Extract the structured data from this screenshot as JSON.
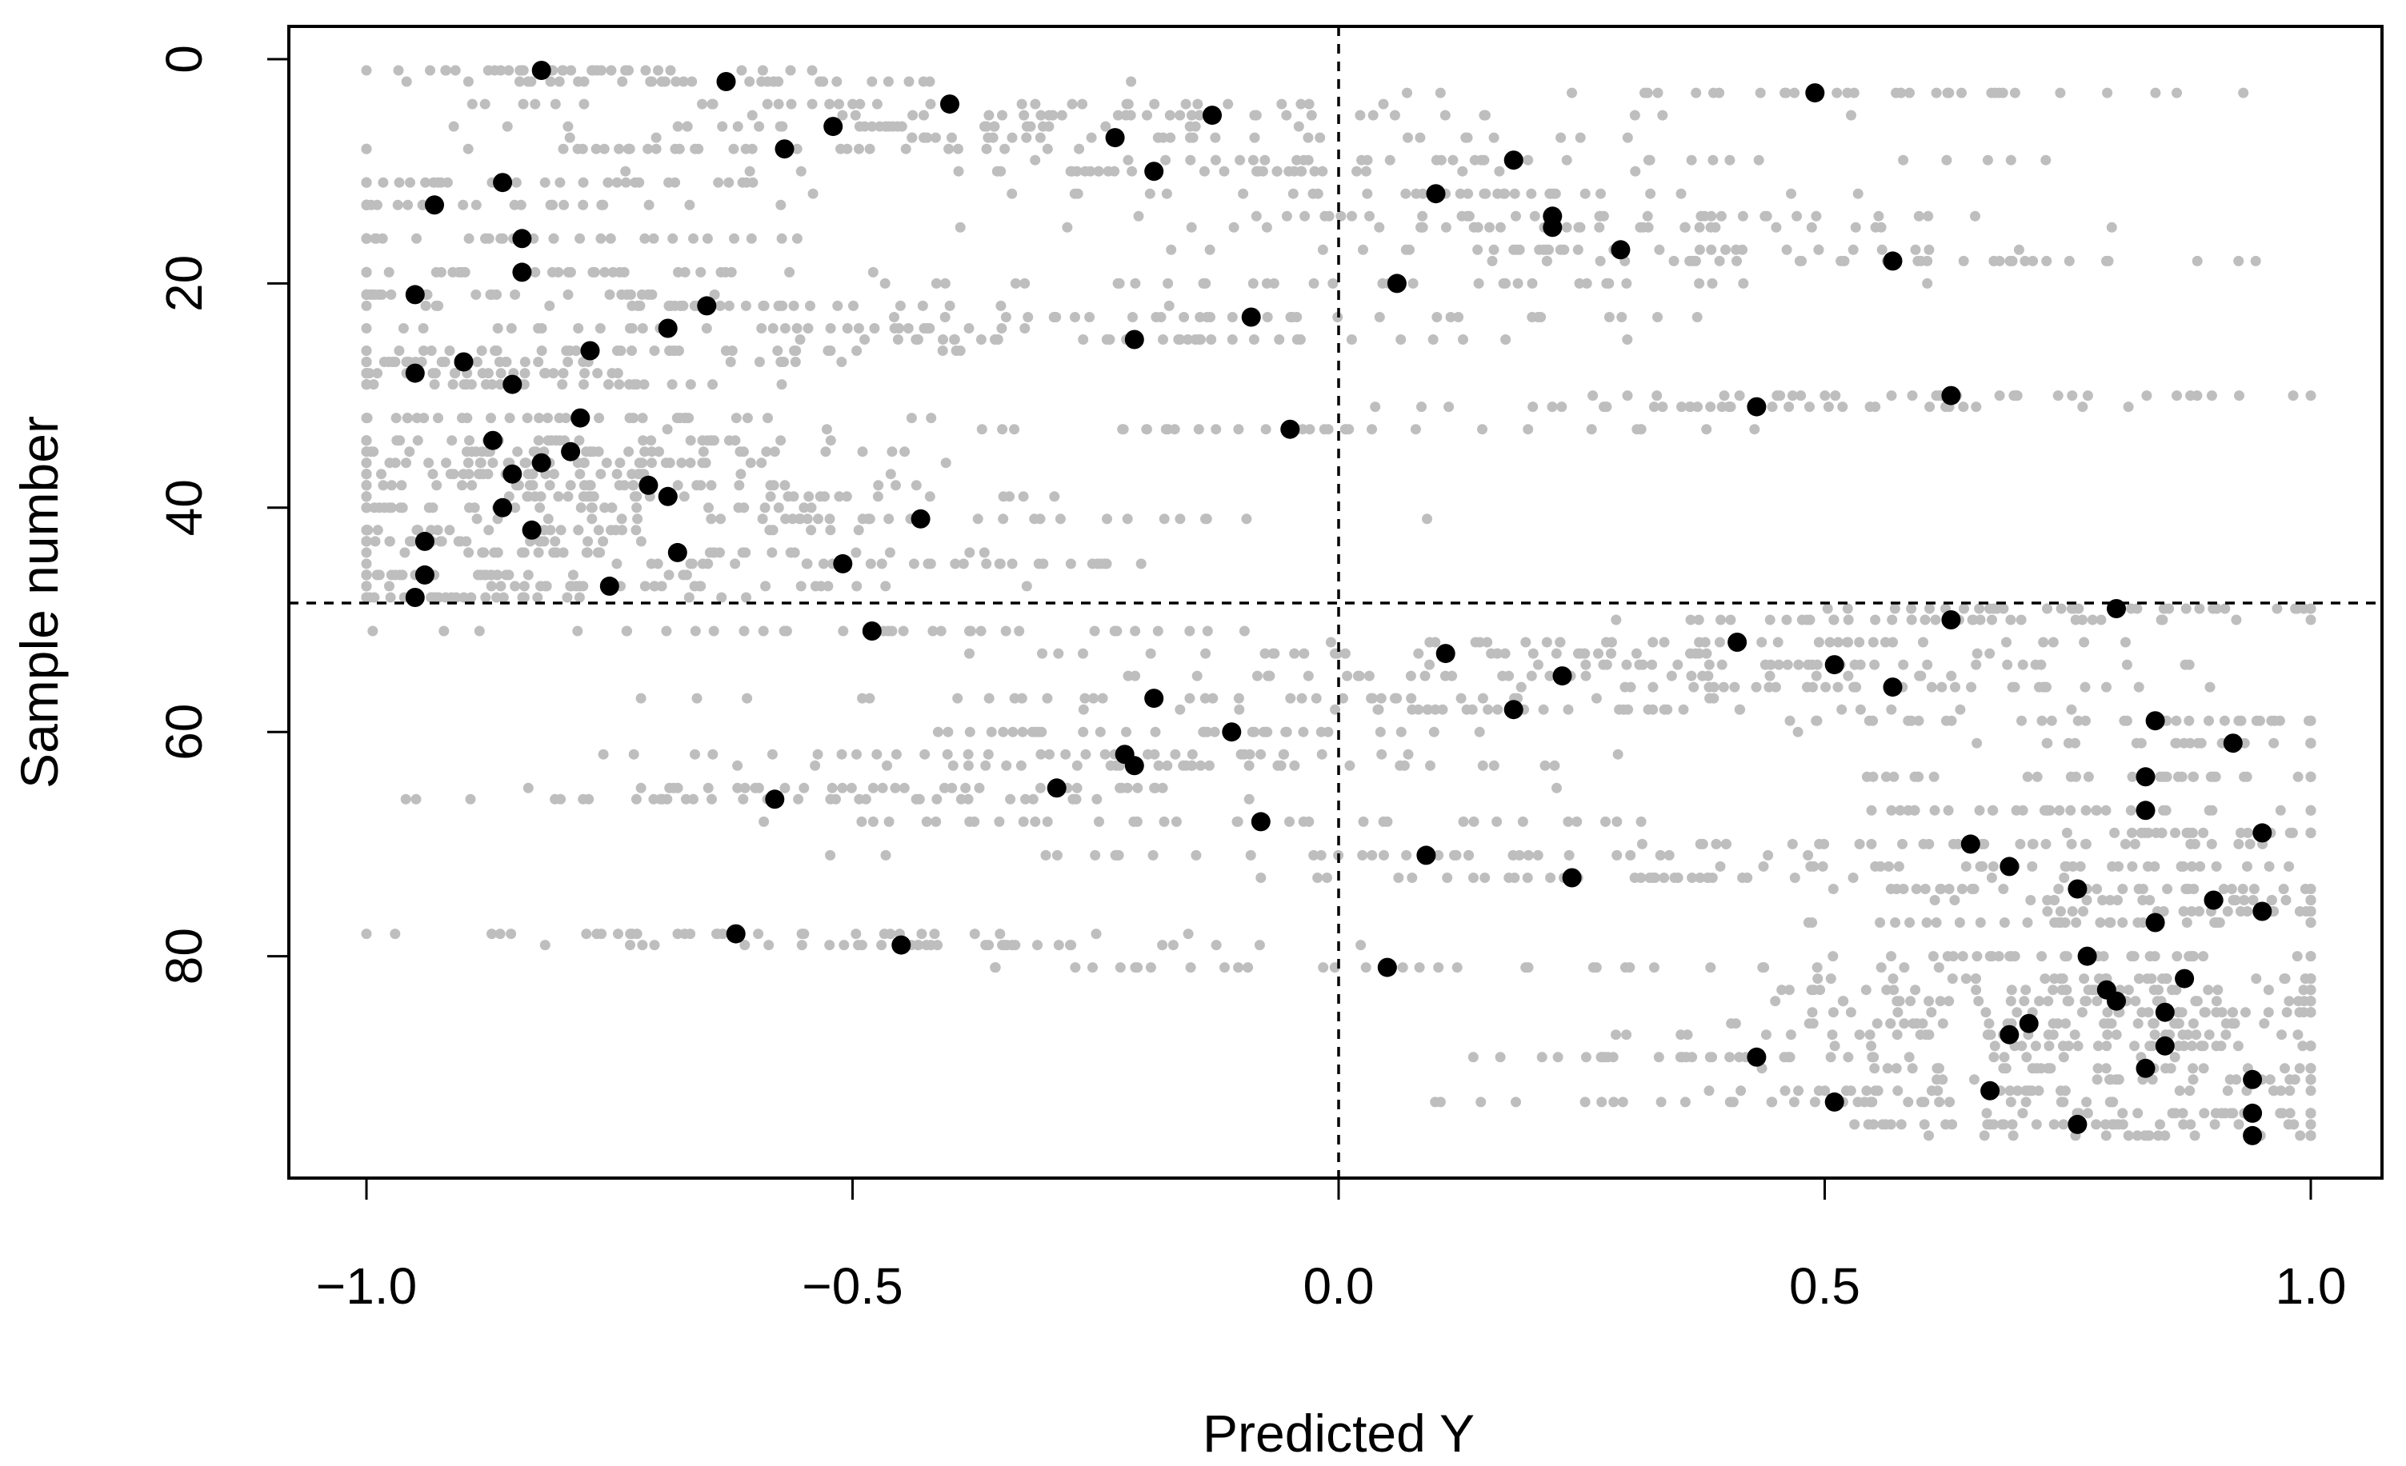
{
  "chart_data": {
    "type": "scatter",
    "xlabel": "Predicted Y",
    "ylabel": "Sample number",
    "xlim": [
      -1.08,
      1.08
    ],
    "ylim": [
      -3,
      100
    ],
    "y_reversed": true,
    "x_ticks": [
      -1.0,
      -0.5,
      0.0,
      0.5,
      1.0
    ],
    "x_tick_labels": [
      "−1.0",
      "−0.5",
      "0.0",
      "0.5",
      "1.0"
    ],
    "y_ticks": [
      0,
      20,
      40,
      60,
      80
    ],
    "y_tick_labels": [
      "0",
      "20",
      "40",
      "60",
      "80"
    ],
    "reference_lines": {
      "vertical_x": 0.0,
      "horizontal_y": 48.5
    },
    "colors": {
      "background_samples": "#bebebe",
      "mean_points": "#000000"
    },
    "series": [
      {
        "name": "",
        "role": "mean predictions",
        "color": "#000000",
        "points": [
          [
            -0.82,
            1
          ],
          [
            -0.63,
            2
          ],
          [
            0.49,
            3
          ],
          [
            -0.4,
            4
          ],
          [
            -0.13,
            5
          ],
          [
            -0.52,
            6
          ],
          [
            -0.23,
            7
          ],
          [
            -0.57,
            8
          ],
          [
            0.18,
            9
          ],
          [
            -0.19,
            10
          ],
          [
            -0.86,
            11
          ],
          [
            0.1,
            12
          ],
          [
            -0.93,
            13
          ],
          [
            0.22,
            14
          ],
          [
            0.22,
            15
          ],
          [
            -0.84,
            16
          ],
          [
            0.29,
            17
          ],
          [
            0.57,
            18
          ],
          [
            -0.84,
            19
          ],
          [
            0.06,
            20
          ],
          [
            -0.95,
            21
          ],
          [
            -0.65,
            22
          ],
          [
            -0.09,
            23
          ],
          [
            -0.69,
            24
          ],
          [
            -0.21,
            25
          ],
          [
            -0.77,
            26
          ],
          [
            -0.9,
            27
          ],
          [
            -0.95,
            28
          ],
          [
            -0.85,
            29
          ],
          [
            0.63,
            30
          ],
          [
            0.43,
            31
          ],
          [
            -0.78,
            32
          ],
          [
            -0.05,
            33
          ],
          [
            -0.87,
            34
          ],
          [
            -0.79,
            35
          ],
          [
            -0.82,
            36
          ],
          [
            -0.85,
            37
          ],
          [
            -0.71,
            38
          ],
          [
            -0.69,
            39
          ],
          [
            -0.86,
            40
          ],
          [
            -0.43,
            41
          ],
          [
            -0.83,
            42
          ],
          [
            -0.94,
            43
          ],
          [
            -0.68,
            44
          ],
          [
            -0.51,
            45
          ],
          [
            -0.94,
            46
          ],
          [
            -0.75,
            47
          ],
          [
            -0.95,
            48
          ],
          [
            0.8,
            49
          ],
          [
            0.63,
            50
          ],
          [
            -0.48,
            51
          ],
          [
            0.41,
            52
          ],
          [
            0.11,
            53
          ],
          [
            0.51,
            54
          ],
          [
            0.23,
            55
          ],
          [
            0.57,
            56
          ],
          [
            -0.19,
            57
          ],
          [
            0.18,
            58
          ],
          [
            0.84,
            59
          ],
          [
            -0.11,
            60
          ],
          [
            0.92,
            61
          ],
          [
            -0.22,
            62
          ],
          [
            -0.21,
            63
          ],
          [
            0.83,
            64
          ],
          [
            -0.29,
            65
          ],
          [
            -0.58,
            66
          ],
          [
            0.83,
            67
          ],
          [
            -0.08,
            68
          ],
          [
            0.95,
            69
          ],
          [
            0.65,
            70
          ],
          [
            0.09,
            71
          ],
          [
            0.69,
            72
          ],
          [
            0.24,
            73
          ],
          [
            0.76,
            74
          ],
          [
            0.9,
            75
          ],
          [
            0.95,
            76
          ],
          [
            0.84,
            77
          ],
          [
            -0.62,
            78
          ],
          [
            -0.45,
            79
          ],
          [
            0.77,
            80
          ],
          [
            0.05,
            81
          ],
          [
            0.87,
            82
          ],
          [
            0.79,
            83
          ],
          [
            0.8,
            84
          ],
          [
            0.85,
            85
          ],
          [
            0.71,
            86
          ],
          [
            0.69,
            87
          ],
          [
            0.85,
            88
          ],
          [
            0.43,
            89
          ],
          [
            0.83,
            90
          ],
          [
            0.94,
            91
          ],
          [
            0.67,
            92
          ],
          [
            0.51,
            93
          ],
          [
            0.94,
            94
          ],
          [
            0.76,
            95
          ],
          [
            0.94,
            96
          ]
        ]
      }
    ],
    "background_samples": {
      "description": "",
      "per_sample_rows": 96
    }
  }
}
